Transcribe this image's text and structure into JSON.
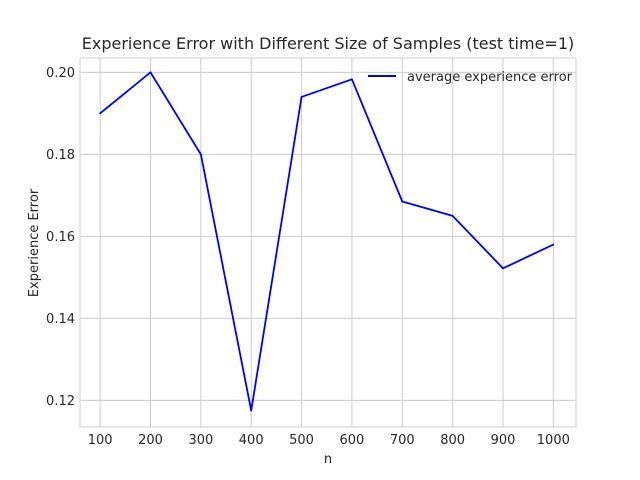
{
  "chart_data": {
    "type": "line",
    "title": "Experience Error with Different Size of Samples (test time=1)",
    "xlabel": "n",
    "ylabel": "Experience Error",
    "x": [
      100,
      200,
      300,
      400,
      500,
      600,
      700,
      800,
      900,
      1000
    ],
    "xticks": [
      "100",
      "200",
      "300",
      "400",
      "500",
      "600",
      "700",
      "800",
      "900",
      "1000"
    ],
    "yticks": [
      "0.12",
      "0.14",
      "0.16",
      "0.18",
      "0.20"
    ],
    "xlim": [
      60,
      1045
    ],
    "ylim": [
      0.1135,
      0.2035
    ],
    "grid": true,
    "legend_position": "top-right",
    "series": [
      {
        "name": "average experience error",
        "color": "#0000ff",
        "values": [
          0.19,
          0.2,
          0.18,
          0.1175,
          0.194,
          0.1983,
          0.1685,
          0.165,
          0.1522,
          0.158
        ]
      }
    ]
  }
}
